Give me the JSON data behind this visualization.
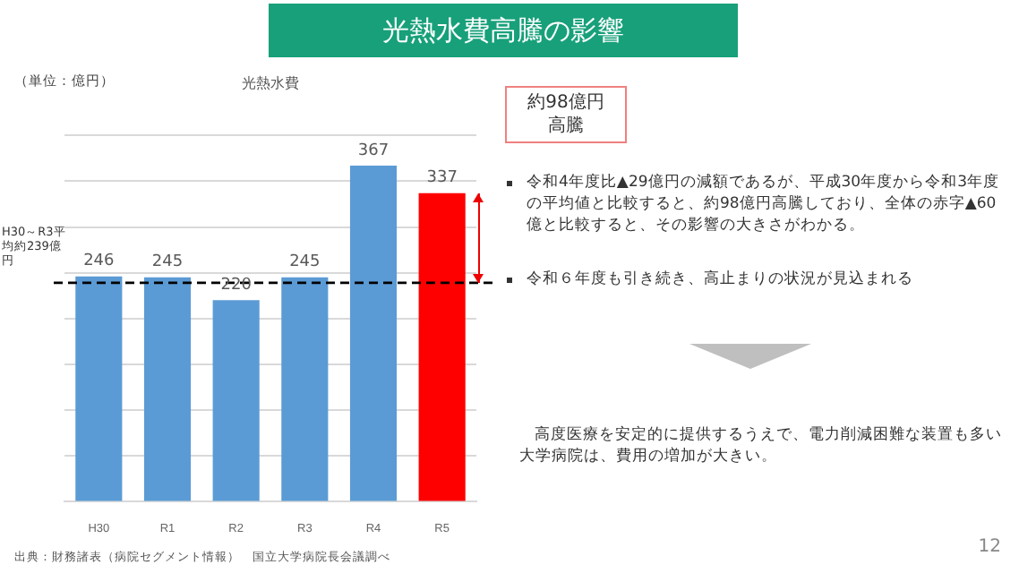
{
  "chart_data": {
    "type": "bar",
    "title": "光熱水費高騰の影響",
    "subtitle": "光熱水費",
    "ylabel": "（単位：億円）",
    "categories": [
      "H30",
      "R1",
      "R2",
      "R3",
      "R4",
      "R5"
    ],
    "values": [
      246,
      245,
      220,
      245,
      367,
      337
    ],
    "colors": [
      "#5b9bd5",
      "#5b9bd5",
      "#5b9bd5",
      "#5b9bd5",
      "#5b9bd5",
      "#ff0000"
    ],
    "data_labels": true,
    "ylim": [
      0,
      400
    ],
    "yticks": [
      {
        "value": 0,
        "label": null
      },
      {
        "value": 50,
        "label": null
      },
      {
        "value": 100,
        "label": null
      },
      {
        "value": 150,
        "label": null
      },
      {
        "value": 200,
        "label": null
      },
      {
        "value": 250,
        "label": null
      },
      {
        "value": 300,
        "label": null
      },
      {
        "value": 350,
        "label": null
      },
      {
        "value": 400,
        "label": null
      }
    ],
    "tick_labels": "x",
    "grid": "y",
    "legend": false,
    "ref_lines": [
      {
        "axis": "y",
        "value": 239,
        "label": "H30～R3平均約239億円",
        "color": "#000000",
        "line_style": "dashed"
      }
    ],
    "annotations": [
      "約98億円高騰",
      "令和4年度比▲29億円の減額であるが、平成30年度から令和3年度の平均値と比較すると、約98億円高騰しており、全体の赤字▲60億と比較すると、その影響の大きさがわかる。",
      "令和６年度も引き続き、高止まりの状況が見込まれる",
      "高度医療を安定的に提供するうえで、電力削減困難な装置も多い大学病院は、費用の増加が大きい。",
      "出典：財務諸表（病院セグメント情報）　国立大学病院長会議調べ",
      "12"
    ]
  }
}
